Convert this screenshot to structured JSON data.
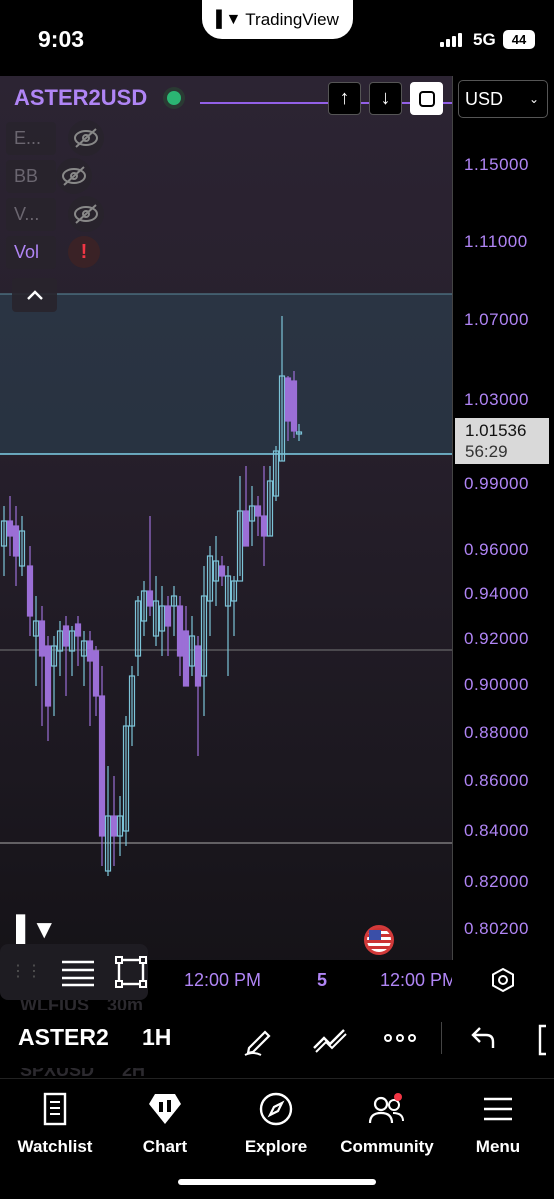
{
  "status_bar": {
    "time": "9:03",
    "app_pill": "TradingView",
    "network": "5G",
    "battery": "44"
  },
  "header": {
    "symbol": "ASTER2USD",
    "currency": "USD"
  },
  "indicators": [
    {
      "label": "E...",
      "state": "hidden"
    },
    {
      "label": "BB",
      "state": "hidden"
    },
    {
      "label": "V...",
      "state": "hidden"
    },
    {
      "label": "Vol",
      "state": "error"
    }
  ],
  "price_axis": {
    "ticks": [
      "1.15000",
      "1.11000",
      "1.07000",
      "1.03000",
      "0.99000",
      "0.96000",
      "0.94000",
      "0.92000",
      "0.90000",
      "0.88000",
      "0.86000",
      "0.84000",
      "0.82000",
      "0.80200"
    ],
    "current_price": "1.01536",
    "countdown": "56:29"
  },
  "time_axis": {
    "labels": [
      "12:00 PM",
      "5",
      "12:00 PM"
    ]
  },
  "toolbar": {
    "symbol": "ASTER2",
    "interval": "1H"
  },
  "ghost_rows": [
    "WLFIUS",
    "30m",
    "SPXUSD",
    "2H"
  ],
  "tabs": [
    {
      "label": "Watchlist",
      "icon": "bookmark-icon"
    },
    {
      "label": "Chart",
      "icon": "chart-icon"
    },
    {
      "label": "Explore",
      "icon": "compass-icon"
    },
    {
      "label": "Community",
      "icon": "community-icon"
    },
    {
      "label": "Menu",
      "icon": "menu-icon"
    }
  ],
  "colors": {
    "accent": "#b085f5",
    "bull": "#7cc4d8",
    "bear": "#9b6fd6",
    "live": "#2bb673"
  }
}
